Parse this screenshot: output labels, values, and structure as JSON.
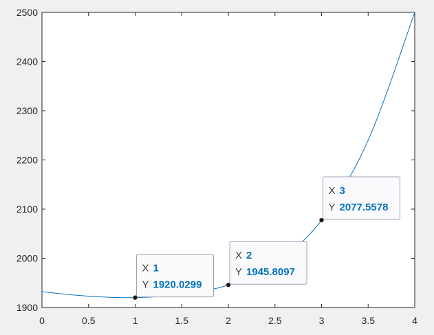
{
  "chart_data": {
    "type": "line",
    "title": "",
    "xlabel": "",
    "ylabel": "",
    "xlim": [
      0,
      4
    ],
    "ylim": [
      1900,
      2500
    ],
    "x_ticks": [
      0,
      0.5,
      1,
      1.5,
      2,
      2.5,
      3,
      3.5,
      4
    ],
    "x_tick_labels": [
      "0",
      "0.5",
      "1",
      "1.5",
      "2",
      "2.5",
      "3",
      "3.5",
      "4"
    ],
    "y_ticks": [
      1900,
      2000,
      2100,
      2200,
      2300,
      2400,
      2500
    ],
    "y_tick_labels": [
      "1900",
      "2000",
      "2100",
      "2200",
      "2300",
      "2400",
      "2500"
    ],
    "grid": false,
    "series": [
      {
        "color": "#0072bd",
        "x": [
          0,
          0.5,
          1,
          1.5,
          2,
          2.5,
          3,
          3.5,
          4
        ],
        "y": [
          1932,
          1923,
          1920.0299,
          1927,
          1945.8097,
          1990,
          2077.5578,
          2240,
          2500
        ]
      }
    ],
    "datatips": [
      {
        "x_key": "X",
        "y_key": "Y",
        "x_label": "1",
        "y_label": "1920.0299",
        "x": 1,
        "y": 1920.0299
      },
      {
        "x_key": "X",
        "y_key": "Y",
        "x_label": "2",
        "y_label": "1945.8097",
        "x": 2,
        "y": 1945.8097
      },
      {
        "x_key": "X",
        "y_key": "Y",
        "x_label": "3",
        "y_label": "2077.5578",
        "x": 3,
        "y": 2077.5578
      }
    ]
  }
}
